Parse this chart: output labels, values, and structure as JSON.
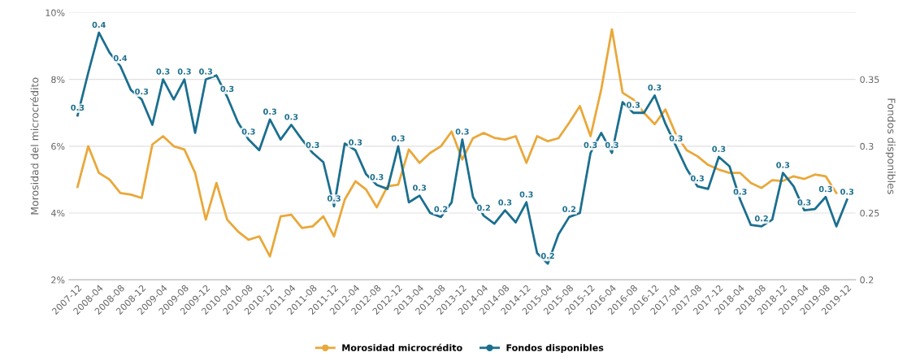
{
  "chart_data": {
    "type": "line",
    "categories": [
      "2007-12",
      null,
      "2008-04",
      null,
      "2008-08",
      null,
      "2008-12",
      null,
      "2009-04",
      null,
      "2009-08",
      null,
      "2009-12",
      null,
      "2010-04",
      null,
      "2010-08",
      null,
      "2010-12",
      null,
      "2011-04",
      null,
      "2011-08",
      null,
      "2011-12",
      null,
      "2012-04",
      null,
      "2012-08",
      null,
      "2012-12",
      null,
      "2013-04",
      null,
      "2013-08",
      null,
      "2013-12",
      null,
      "2014-04",
      null,
      "2014-08",
      null,
      "2014-12",
      null,
      "2015-04",
      null,
      "2015-08",
      null,
      "2015-12",
      null,
      "2016-04",
      null,
      "2016-08",
      null,
      "2016-12",
      null,
      "2017-04",
      null,
      "2017-08",
      null,
      "2017-12",
      null,
      "2018-04",
      null,
      "2018-08",
      null,
      "2018-12",
      null,
      "2019-04",
      null,
      "2019-08",
      null,
      "2019-12"
    ],
    "ylabel": "Morosidad del microcrédito",
    "y2label": "Fondos disponibles",
    "ylim": [
      2,
      10
    ],
    "yticks": [
      {
        "value": 2,
        "label": "2%"
      },
      {
        "value": 4,
        "label": "4%"
      },
      {
        "value": 6,
        "label": "6%"
      },
      {
        "value": 8,
        "label": "8%"
      },
      {
        "value": 10,
        "label": "10%"
      }
    ],
    "y2lim": [
      0.2,
      0.4
    ],
    "y2ticks": [
      0.2,
      0.25,
      0.3,
      0.35
    ],
    "grid": "y",
    "legend": "bottom",
    "marker": "none",
    "line_style": "solid",
    "series": [
      {
        "name": "Morosidad microcrédito",
        "color": "#e9a83a",
        "values": [
          4.78,
          6.0,
          5.2,
          5.0,
          4.6,
          4.55,
          4.45,
          6.05,
          6.3,
          6.0,
          5.9,
          5.2,
          3.8,
          4.9,
          3.8,
          3.45,
          3.2,
          3.3,
          2.7,
          3.9,
          3.95,
          3.55,
          3.6,
          3.9,
          3.3,
          4.4,
          4.95,
          4.7,
          4.17,
          4.8,
          4.85,
          5.9,
          5.5,
          5.8,
          6.0,
          6.44,
          5.6,
          6.24,
          6.4,
          6.25,
          6.2,
          6.3,
          5.5,
          6.3,
          6.15,
          6.24,
          6.7,
          7.2,
          6.3,
          7.7,
          9.5,
          7.6,
          7.4,
          7.0,
          6.66,
          7.1,
          6.35,
          5.88,
          5.7,
          5.44,
          5.3,
          5.2,
          5.2,
          4.9,
          4.75,
          4.98,
          4.96,
          5.1,
          5.02,
          5.15,
          5.1,
          4.6,
          null
        ]
      },
      {
        "name": "Fondos disponibles",
        "color": "#1b6f8f",
        "axis": "y2",
        "values": [
          0.323,
          0.355,
          0.385,
          0.37,
          0.36,
          0.342,
          0.335,
          0.316,
          0.35,
          0.335,
          0.35,
          0.31,
          0.35,
          0.353,
          0.337,
          0.318,
          0.305,
          0.297,
          0.32,
          0.305,
          0.316,
          0.305,
          0.295,
          0.288,
          0.255,
          0.302,
          0.297,
          0.279,
          0.271,
          0.268,
          0.3,
          0.258,
          0.263,
          0.25,
          0.247,
          0.258,
          0.305,
          0.262,
          0.248,
          0.242,
          0.252,
          0.243,
          0.258,
          0.22,
          0.212,
          0.234,
          0.247,
          0.25,
          0.295,
          0.31,
          0.295,
          0.333,
          0.325,
          0.325,
          0.338,
          0.317,
          0.3,
          0.283,
          0.27,
          0.268,
          0.292,
          0.285,
          0.26,
          0.241,
          0.24,
          0.245,
          0.28,
          0.27,
          0.252,
          0.253,
          0.262,
          0.24,
          0.26
        ],
        "value_labels": [
          "0.3",
          null,
          "0.4",
          null,
          "0.4",
          null,
          "0.3",
          null,
          "0.3",
          null,
          "0.3",
          null,
          "0.3",
          null,
          "0.3",
          null,
          "0.3",
          null,
          "0.3",
          null,
          "0.3",
          null,
          "0.3",
          null,
          "0.3",
          null,
          "0.3",
          null,
          "0.3",
          null,
          "0.3",
          null,
          "0.3",
          null,
          "0.2",
          null,
          "0.3",
          null,
          "0.2",
          null,
          "0.3",
          null,
          "0.3",
          null,
          "0.2",
          null,
          "0.2",
          null,
          "0.3",
          null,
          "0.3",
          null,
          "0.3",
          null,
          "0.3",
          null,
          "0.3",
          null,
          "0.3",
          null,
          "0.3",
          null,
          "0.3",
          null,
          "0.2",
          null,
          "0.3",
          null,
          "0.3",
          null,
          "0.3",
          null,
          "0.3"
        ]
      }
    ]
  }
}
